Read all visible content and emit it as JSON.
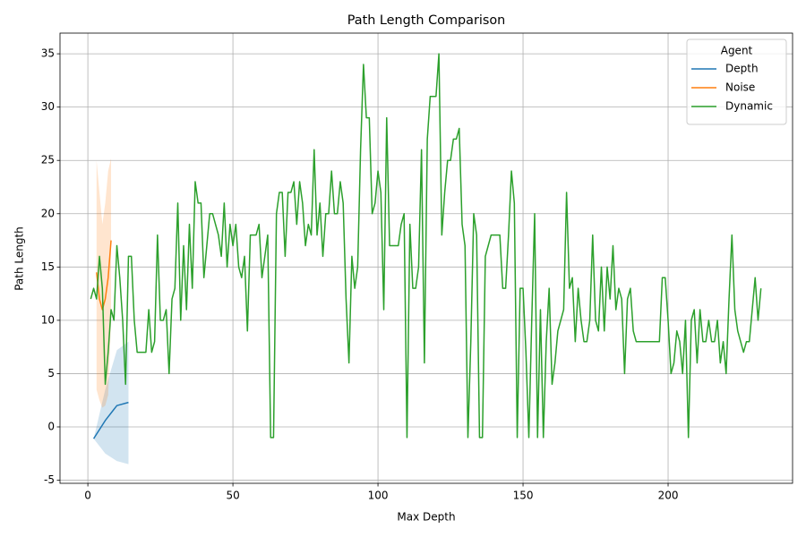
{
  "chart_data": {
    "type": "line",
    "title": "Path Length Comparison",
    "x_label": "Max Depth",
    "y_label": "Path Length",
    "xlim": [
      -9.6,
      242.9
    ],
    "ylim": [
      -5.29,
      36.94
    ],
    "xticks": [
      0,
      50,
      100,
      150,
      200
    ],
    "yticks": [
      -5,
      0,
      5,
      10,
      15,
      20,
      25,
      30,
      35
    ],
    "grid": true,
    "legend_title": "Agent",
    "legend_position": "upper right",
    "series": [
      {
        "name": "Depth",
        "color": "#1f77b4",
        "x": [
          2,
          6,
          10,
          14
        ],
        "values": [
          -1.1,
          0.6,
          2.0,
          2.3
        ],
        "lower": [
          -1.1,
          -2.5,
          -3.2,
          -3.5
        ],
        "upper": [
          -1.1,
          3.5,
          7.2,
          8.0
        ]
      },
      {
        "name": "Noise",
        "color": "#ff7f0e",
        "x": [
          3,
          4,
          5,
          6,
          7,
          8
        ],
        "values": [
          14.5,
          12,
          11,
          12,
          14,
          17.5
        ],
        "lower": [
          3.5,
          2.5,
          1.8,
          2,
          3,
          10
        ],
        "upper": [
          25,
          22,
          19,
          21,
          24,
          25.2
        ]
      },
      {
        "name": "Dynamic",
        "color": "#2ca02c",
        "x": [
          1,
          2,
          3,
          4,
          5,
          6,
          7,
          8,
          9,
          10,
          11,
          12,
          13,
          14,
          15,
          16,
          17,
          18,
          19,
          20,
          21,
          22,
          23,
          24,
          25,
          26,
          27,
          28,
          29,
          30,
          31,
          32,
          33,
          34,
          35,
          36,
          37,
          38,
          39,
          40,
          41,
          42,
          43,
          44,
          45,
          46,
          47,
          48,
          49,
          50,
          51,
          52,
          53,
          54,
          55,
          56,
          57,
          58,
          59,
          60,
          61,
          62,
          63,
          64,
          65,
          66,
          67,
          68,
          69,
          70,
          71,
          72,
          73,
          74,
          75,
          76,
          77,
          78,
          79,
          80,
          81,
          82,
          83,
          84,
          85,
          86,
          87,
          88,
          89,
          90,
          91,
          92,
          93,
          94,
          95,
          96,
          97,
          98,
          99,
          100,
          101,
          102,
          103,
          104,
          105,
          106,
          107,
          108,
          109,
          110,
          111,
          112,
          113,
          114,
          115,
          116,
          117,
          118,
          119,
          120,
          121,
          122,
          123,
          124,
          125,
          126,
          127,
          128,
          129,
          130,
          131,
          132,
          133,
          134,
          135,
          136,
          137,
          138,
          139,
          140,
          141,
          142,
          143,
          144,
          145,
          146,
          147,
          148,
          149,
          150,
          151,
          152,
          153,
          154,
          155,
          156,
          157,
          158,
          159,
          160,
          161,
          162,
          163,
          164,
          165,
          166,
          167,
          168,
          169,
          170,
          171,
          172,
          173,
          174,
          175,
          176,
          177,
          178,
          179,
          180,
          181,
          182,
          183,
          184,
          185,
          186,
          187,
          188,
          189,
          190,
          191,
          192,
          193,
          194,
          195,
          196,
          197,
          198,
          199,
          200,
          201,
          202,
          203,
          204,
          205,
          206,
          207,
          208,
          209,
          210,
          211,
          212,
          213,
          214,
          215,
          216,
          217,
          218,
          219,
          220,
          221,
          222,
          223,
          224,
          225,
          226,
          227,
          228,
          229,
          230,
          231,
          232
        ],
        "values": [
          12,
          13,
          12,
          16,
          13,
          4,
          7,
          11,
          10,
          17,
          14,
          10,
          4,
          16,
          16,
          10,
          7,
          7,
          7,
          7,
          11,
          7,
          8,
          18,
          10,
          10,
          11,
          5,
          12,
          13,
          21,
          10,
          17,
          11,
          19,
          13,
          23,
          21,
          21,
          14,
          17,
          20,
          20,
          19,
          18,
          16,
          21,
          15,
          19,
          17,
          19,
          15,
          14,
          16,
          9,
          18,
          18,
          18,
          19,
          14,
          16,
          18,
          -1,
          -1,
          20,
          22,
          22,
          16,
          22,
          22,
          23,
          19,
          23,
          21,
          17,
          19,
          18,
          26,
          18,
          21,
          16,
          20,
          20,
          24,
          20,
          20,
          23,
          21,
          12,
          6,
          16,
          13,
          15,
          26,
          34,
          29,
          29,
          20,
          21,
          24,
          22,
          11,
          29,
          17,
          17,
          17,
          17,
          19,
          20,
          -1,
          19,
          13,
          13,
          15,
          26,
          6,
          27,
          31,
          31,
          31,
          35,
          18,
          22,
          25,
          25,
          27,
          27,
          28,
          19,
          17,
          -1,
          8,
          20,
          18,
          -1,
          -1,
          16,
          17,
          18,
          18,
          18,
          18,
          13,
          13,
          18,
          24,
          21,
          -1,
          13,
          13,
          7,
          -1,
          10,
          20,
          -1,
          11,
          -1,
          8,
          13,
          4,
          6,
          9,
          10,
          11,
          22,
          13,
          14,
          8,
          13,
          10,
          8,
          8,
          10,
          18,
          10,
          9,
          15,
          9,
          15,
          12,
          17,
          11,
          13,
          12,
          5,
          12,
          13,
          9,
          8,
          8,
          8,
          8,
          8,
          8,
          8,
          8,
          8,
          14,
          14,
          10,
          5,
          6,
          9,
          8,
          5,
          10,
          -1,
          10,
          11,
          6,
          11,
          8,
          8,
          10,
          8,
          8,
          10,
          6,
          8,
          5,
          12,
          18,
          11,
          9,
          8,
          7,
          8,
          8,
          11,
          14,
          10,
          13
        ]
      }
    ]
  }
}
